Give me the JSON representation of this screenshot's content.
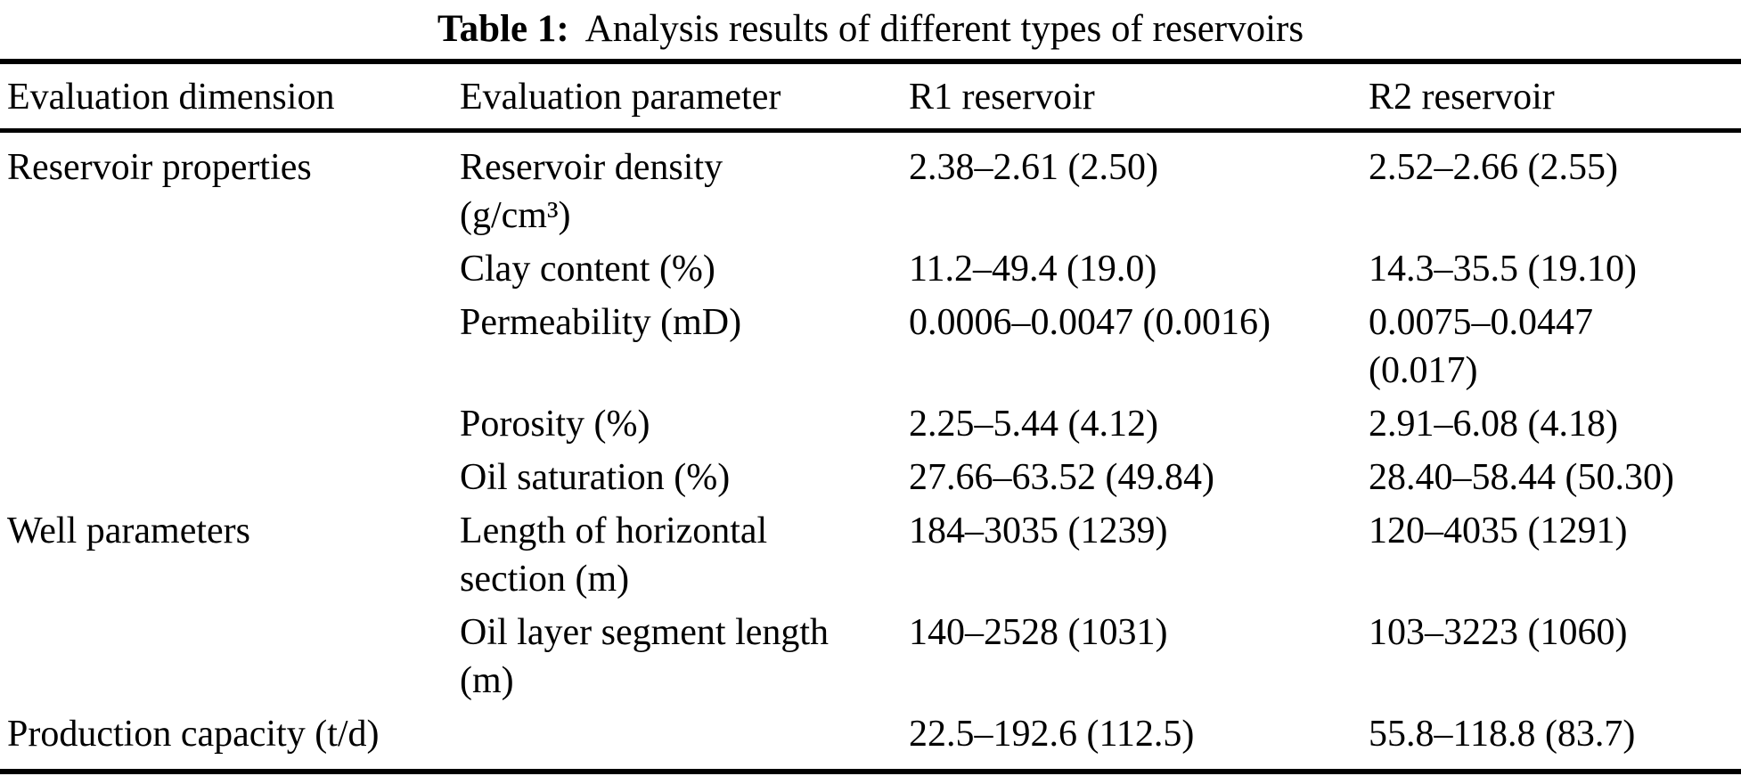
{
  "caption": {
    "label": "Table 1:",
    "text": "Analysis results of different types of reservoirs"
  },
  "colors": {
    "background": "#ffffff",
    "text": "#000000",
    "rule": "#000000"
  },
  "table": {
    "columns": [
      "Evaluation dimension",
      "Evaluation parameter",
      "R1 reservoir",
      "R2 reservoir"
    ],
    "rows": [
      {
        "dimension": [
          "Reservoir properties"
        ],
        "parameter": [
          "Reservoir density",
          "(g/cm³)"
        ],
        "r1": [
          "2.38–2.61 (2.50)"
        ],
        "r2": [
          "2.52–2.66 (2.55)"
        ]
      },
      {
        "dimension": [],
        "parameter": [
          "Clay content (%)"
        ],
        "r1": [
          "11.2–49.4 (19.0)"
        ],
        "r2": [
          "14.3–35.5 (19.10)"
        ]
      },
      {
        "dimension": [],
        "parameter": [
          "Permeability (mD)"
        ],
        "r1": [
          "0.0006–0.0047 (0.0016)"
        ],
        "r2": [
          "0.0075–0.0447",
          "(0.017)"
        ]
      },
      {
        "dimension": [],
        "parameter": [
          "Porosity (%)"
        ],
        "r1": [
          "2.25–5.44 (4.12)"
        ],
        "r2": [
          "2.91–6.08 (4.18)"
        ]
      },
      {
        "dimension": [],
        "parameter": [
          "Oil saturation (%)"
        ],
        "r1": [
          "27.66–63.52 (49.84)"
        ],
        "r2": [
          "28.40–58.44 (50.30)"
        ]
      },
      {
        "dimension": [
          "Well parameters"
        ],
        "parameter": [
          "Length of horizontal",
          "section (m)"
        ],
        "r1": [
          "184–3035 (1239)"
        ],
        "r2": [
          "120–4035 (1291)"
        ]
      },
      {
        "dimension": [],
        "parameter": [
          "Oil layer segment length",
          "(m)"
        ],
        "r1": [
          "140–2528 (1031)"
        ],
        "r2": [
          "103–3223 (1060)"
        ]
      },
      {
        "dimension": [
          "Production capacity (t/d)"
        ],
        "parameter": [],
        "r1": [
          "22.5–192.6 (112.5)"
        ],
        "r2": [
          "55.8–118.8 (83.7)"
        ]
      }
    ]
  }
}
